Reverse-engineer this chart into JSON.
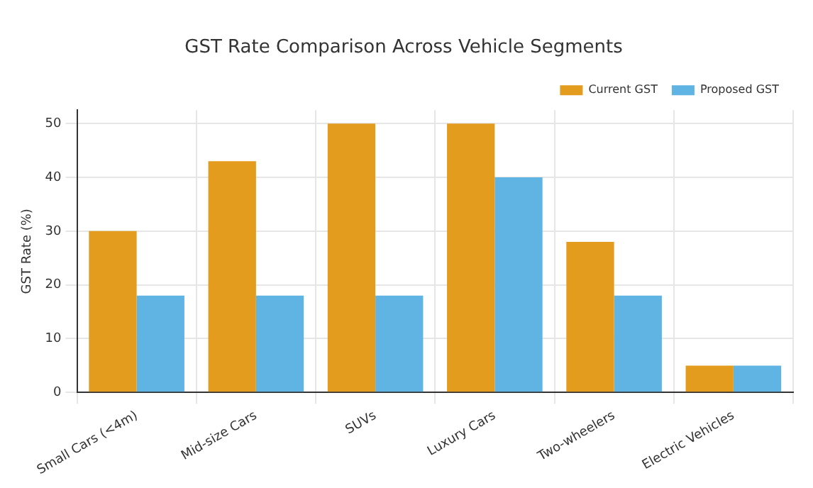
{
  "chart_data": {
    "type": "bar",
    "title": "GST Rate Comparison Across Vehicle Segments",
    "ylabel": "GST Rate (%)",
    "categories": [
      "Small Cars (<4m)",
      "Mid-size Cars",
      "SUVs",
      "Luxury Cars",
      "Two-wheelers",
      "Electric Vehicles"
    ],
    "series": [
      {
        "name": "Current GST",
        "color": "#e39c1e",
        "values": [
          30,
          43,
          50,
          50,
          28,
          5
        ]
      },
      {
        "name": "Proposed GST",
        "color": "#5fb4e4",
        "values": [
          18,
          18,
          18,
          40,
          18,
          5
        ]
      }
    ],
    "ylim": [
      0,
      52.5
    ],
    "yticks": [
      0,
      10,
      20,
      30,
      40,
      50
    ],
    "grid": true,
    "legend": "top right"
  }
}
